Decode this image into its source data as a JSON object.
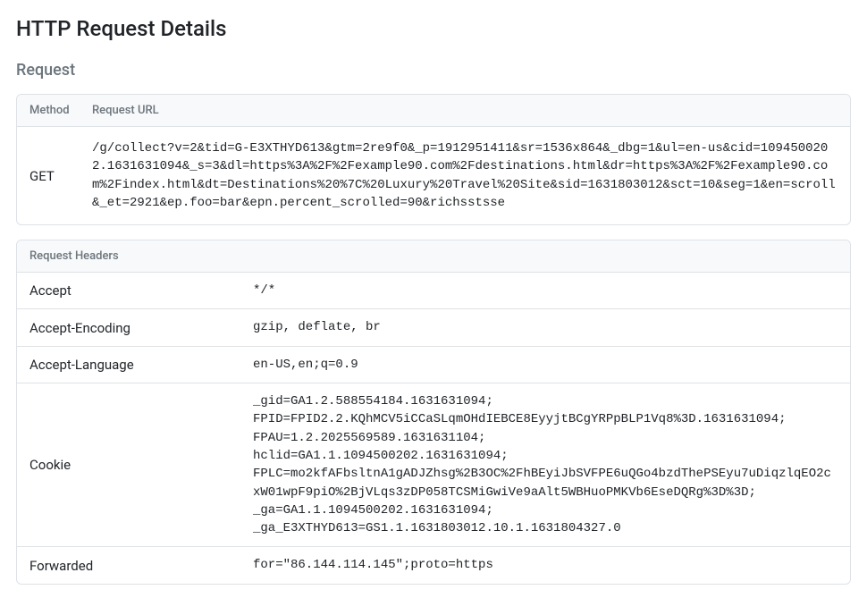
{
  "page": {
    "title": "HTTP Request Details",
    "section_request": "Request"
  },
  "request_table": {
    "col_method": "Method",
    "col_url": "Request URL",
    "method": "GET",
    "url": "/g/collect?v=2&tid=G-E3XTHYD613&gtm=2re9f0&_p=1912951411&sr=1536x864&_dbg=1&ul=en-us&cid=1094500202.1631631094&_s=3&dl=https%3A%2F%2Fexample90.com%2Fdestinations.html&dr=https%3A%2F%2Fexample90.com%2Findex.html&dt=Destinations%20%7C%20Luxury%20Travel%20Site&sid=1631803012&sct=10&seg=1&en=scroll&_et=2921&ep.foo=bar&epn.percent_scrolled=90&richsstsse"
  },
  "headers_table": {
    "title": "Request Headers",
    "rows": [
      {
        "name": "Accept",
        "value": "*/*"
      },
      {
        "name": "Accept-Encoding",
        "value": "gzip, deflate, br"
      },
      {
        "name": "Accept-Language",
        "value": "en-US,en;q=0.9"
      },
      {
        "name": "Cookie",
        "value": "_gid=GA1.2.588554184.1631631094;\nFPID=FPID2.2.KQhMCV5iCCaSLqmOHdIEBCE8EyyjtBCgYRPpBLP1Vq8%3D.1631631094;\nFPAU=1.2.2025569589.1631631104;\nhclid=GA1.1.1094500202.1631631094;\nFPLC=mo2kfAFbsltnA1gADJZhsg%2B3OC%2FhBEyiJbSVFPE6uQGo4bzdThePSEyu7uDiqzlqEO2cxW01wpF9piO%2BjVLqs3zDP058TCSMiGwiVe9aAlt5WBHuoPMKVb6EseDQRg%3D%3D;\n_ga=GA1.1.1094500202.1631631094;\n_ga_E3XTHYD613=GS1.1.1631803012.10.1.1631804327.0"
      },
      {
        "name": "Forwarded",
        "value": "for=\"86.144.114.145\";proto=https"
      }
    ]
  }
}
